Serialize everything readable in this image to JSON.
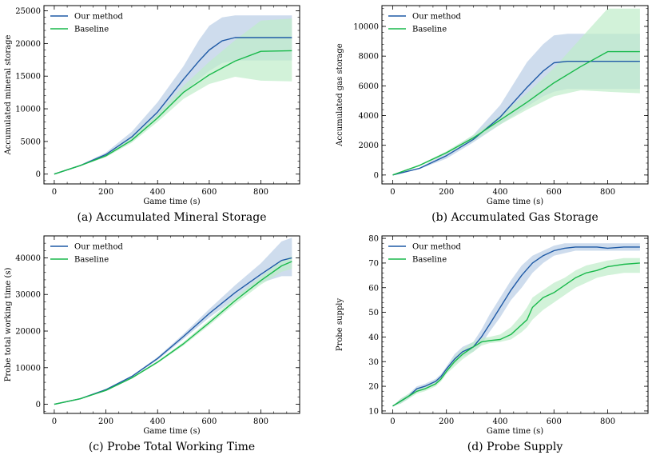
{
  "colors": {
    "ours": "#1f5aa6",
    "ours_band": "#b9cde6",
    "base": "#19b94b",
    "base_band": "#bfecc9"
  },
  "legend": {
    "ours": "Our method",
    "base": "Baseline"
  },
  "chart_data": [
    {
      "type": "line",
      "caption": "(a) Accumulated Mineral Storage",
      "xlabel": "Game time (s)",
      "ylabel": "Accumulated mineral storage",
      "xlim": [
        -40,
        950
      ],
      "ylim": [
        -1500,
        25800
      ],
      "xticks": [
        0,
        200,
        400,
        600,
        800
      ],
      "yticks": [
        0,
        5000,
        10000,
        15000,
        20000,
        25000
      ],
      "legend_position": "top-left",
      "series": [
        {
          "name": "Our method",
          "x": [
            0,
            100,
            200,
            300,
            400,
            500,
            560,
            600,
            650,
            700,
            800,
            920
          ],
          "y": [
            0,
            1300,
            3000,
            5700,
            9500,
            14500,
            17300,
            19000,
            20400,
            20900,
            20900,
            20900
          ],
          "lower": [
            0,
            1200,
            2700,
            5000,
            8500,
            12500,
            14500,
            15800,
            17000,
            17400,
            17400,
            17400
          ],
          "upper": [
            0,
            1400,
            3300,
            6500,
            11000,
            16500,
            20500,
            22700,
            24000,
            24300,
            24300,
            24300
          ]
        },
        {
          "name": "Baseline",
          "x": [
            0,
            100,
            200,
            300,
            400,
            500,
            600,
            700,
            800,
            920
          ],
          "y": [
            0,
            1300,
            2800,
            5200,
            8600,
            12500,
            15200,
            17300,
            18800,
            18900
          ],
          "lower": [
            0,
            1200,
            2600,
            4800,
            8000,
            11500,
            13800,
            14900,
            14300,
            14200
          ],
          "upper": [
            0,
            1400,
            3000,
            5600,
            9200,
            13500,
            17200,
            20500,
            23500,
            23800
          ]
        }
      ]
    },
    {
      "type": "line",
      "caption": "(b) Accumulated Gas Storage",
      "xlabel": "Game time (s)",
      "ylabel": "Accumulated gas storage",
      "xlim": [
        -40,
        950
      ],
      "ylim": [
        -600,
        11400
      ],
      "xticks": [
        0,
        200,
        400,
        600,
        800
      ],
      "yticks": [
        0,
        2000,
        4000,
        6000,
        8000,
        10000
      ],
      "legend_position": "top-left",
      "series": [
        {
          "name": "Our method",
          "x": [
            0,
            100,
            200,
            300,
            400,
            500,
            560,
            600,
            650,
            700,
            800,
            920
          ],
          "y": [
            0,
            450,
            1300,
            2400,
            3900,
            5900,
            7000,
            7550,
            7650,
            7650,
            7650,
            7650
          ],
          "lower": [
            0,
            400,
            1100,
            2200,
            3400,
            4600,
            5300,
            5600,
            5800,
            5800,
            5800,
            5800
          ],
          "upper": [
            0,
            500,
            1500,
            2700,
            4700,
            7600,
            8800,
            9400,
            9500,
            9500,
            9500,
            9500
          ]
        },
        {
          "name": "Baseline",
          "x": [
            0,
            100,
            200,
            300,
            400,
            500,
            600,
            700,
            800,
            920
          ],
          "y": [
            0,
            650,
            1500,
            2500,
            3700,
            4900,
            6200,
            7300,
            8300,
            8300
          ],
          "lower": [
            0,
            600,
            1400,
            2300,
            3400,
            4400,
            5300,
            5700,
            5600,
            5500
          ],
          "upper": [
            0,
            700,
            1600,
            2700,
            4000,
            5500,
            7200,
            9200,
            11200,
            11200
          ]
        }
      ]
    },
    {
      "type": "line",
      "caption": "(c) Probe Total Working Time",
      "xlabel": "Game time (s)",
      "ylabel": "Probe total working time (s)",
      "xlim": [
        -40,
        950
      ],
      "ylim": [
        -2500,
        46000
      ],
      "xticks": [
        0,
        200,
        400,
        600,
        800
      ],
      "yticks": [
        0,
        10000,
        20000,
        30000,
        40000
      ],
      "legend_position": "top-left",
      "series": [
        {
          "name": "Our method",
          "x": [
            0,
            100,
            200,
            300,
            400,
            500,
            600,
            700,
            800,
            880,
            920
          ],
          "y": [
            0,
            1500,
            4000,
            7600,
            12500,
            18500,
            24800,
            30500,
            35500,
            39300,
            40000
          ],
          "lower": [
            0,
            1500,
            3900,
            7400,
            12100,
            17800,
            23700,
            28800,
            33200,
            35000,
            35000
          ],
          "upper": [
            0,
            1600,
            4100,
            7800,
            12900,
            19200,
            26000,
            32500,
            38500,
            44500,
            45500
          ]
        },
        {
          "name": "Baseline",
          "x": [
            0,
            100,
            200,
            300,
            400,
            500,
            600,
            700,
            800,
            880,
            920
          ],
          "y": [
            0,
            1500,
            3800,
            7200,
            11500,
            16500,
            22300,
            28300,
            33800,
            37800,
            39000
          ],
          "lower": [
            0,
            1450,
            3700,
            7000,
            11200,
            16000,
            21600,
            27400,
            32700,
            36200,
            37000
          ],
          "upper": [
            0,
            1550,
            3900,
            7400,
            11800,
            17000,
            23000,
            29200,
            34900,
            39300,
            40500
          ]
        }
      ]
    },
    {
      "type": "line",
      "caption": "(d) Probe Supply",
      "xlabel": "Game time (s)",
      "ylabel": "Probe supply",
      "xlim": [
        -40,
        950
      ],
      "ylim": [
        9,
        81
      ],
      "xticks": [
        0,
        200,
        400,
        600,
        800
      ],
      "yticks": [
        10,
        20,
        30,
        40,
        50,
        60,
        70,
        80
      ],
      "legend_position": "top-left",
      "series": [
        {
          "name": "Our method",
          "x": [
            0,
            30,
            60,
            90,
            120,
            160,
            180,
            200,
            230,
            260,
            300,
            330,
            360,
            400,
            440,
            480,
            520,
            560,
            600,
            640,
            680,
            720,
            760,
            800,
            860,
            920
          ],
          "y": [
            12,
            14,
            16,
            19,
            20,
            22,
            24,
            27,
            31,
            34,
            36,
            40,
            45,
            52,
            59,
            65,
            70,
            73,
            75,
            76,
            76.5,
            76.5,
            76.5,
            76,
            76.5,
            76.5
          ],
          "lower": [
            12,
            13,
            15,
            18,
            19,
            21,
            23,
            26,
            29,
            32,
            34,
            37,
            42,
            48,
            55,
            60,
            66,
            70,
            73,
            74,
            75,
            75,
            75,
            75,
            75,
            75
          ],
          "upper": [
            12,
            15,
            17,
            20,
            21,
            23,
            25,
            28,
            33,
            36,
            38,
            43,
            49,
            56,
            63,
            69,
            73,
            75,
            77,
            78,
            78,
            78,
            78,
            78,
            78,
            78
          ]
        },
        {
          "name": "Baseline",
          "x": [
            0,
            30,
            60,
            90,
            120,
            160,
            180,
            200,
            230,
            260,
            300,
            330,
            360,
            400,
            440,
            480,
            500,
            520,
            560,
            600,
            640,
            680,
            720,
            760,
            800,
            860,
            920
          ],
          "y": [
            12,
            14,
            16,
            18,
            19,
            21,
            23,
            26,
            30,
            33,
            36,
            38,
            38.5,
            39,
            41,
            45,
            47,
            52,
            56,
            58,
            61,
            64,
            66,
            67,
            68.5,
            69.5,
            70
          ],
          "lower": [
            12,
            13,
            15,
            17,
            18,
            20,
            22,
            25,
            28,
            31,
            34,
            36.5,
            37.5,
            38,
            39,
            42,
            44,
            47,
            51,
            54,
            57,
            60,
            62,
            64,
            65,
            66,
            66
          ],
          "upper": [
            12,
            15,
            17,
            19,
            20,
            22,
            24,
            27,
            32,
            35,
            38,
            39.5,
            40,
            41,
            44,
            49,
            52,
            56,
            59,
            62,
            64,
            67,
            69,
            70,
            71,
            72,
            72
          ]
        }
      ]
    }
  ]
}
